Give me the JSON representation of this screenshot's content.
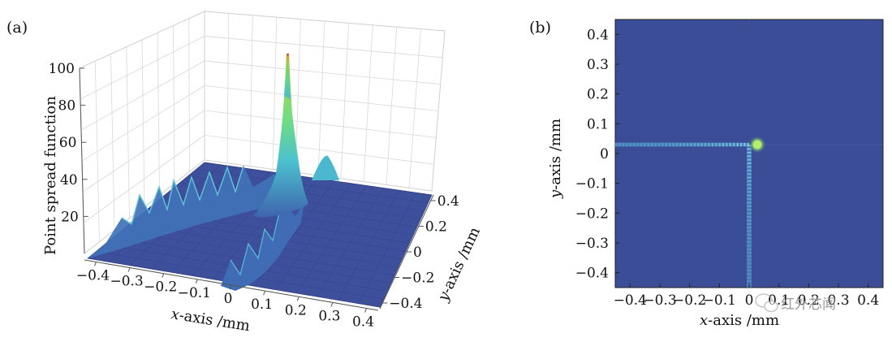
{
  "panels": {
    "a_label": "(a)",
    "b_label": "(b)"
  },
  "watermark": {
    "text": "红外芯闻",
    "icon": "wechat-icon"
  },
  "chart_data": [
    {
      "type": "surface",
      "panel": "(a)",
      "title": "",
      "xlabel_var": "x",
      "xlabel_unit": "-axis /mm",
      "ylabel_var": "y",
      "ylabel_unit": "-axis /mm",
      "zlabel": "Point spread function",
      "x_ticks": [
        "−0.4",
        "−0.3",
        "−0.2",
        "−0.1",
        "0",
        "0.1",
        "0.2",
        "0.3",
        "0.4"
      ],
      "y_ticks": [
        "−0.4",
        "−0.2",
        "0",
        "0.2",
        "0.4"
      ],
      "z_ticks": [
        "20",
        "40",
        "60",
        "80",
        "100"
      ],
      "xlim": [
        -0.45,
        0.45
      ],
      "ylim": [
        -0.45,
        0.45
      ],
      "zlim": [
        0,
        100
      ],
      "grid": true,
      "colormap": [
        "#3c4f9c",
        "#3d7dbd",
        "#4fc7d6",
        "#7fe08a",
        "#d8d34a",
        "#c96a32"
      ],
      "peak": {
        "x": 0,
        "y": 0.03,
        "z": 100
      },
      "features": [
        {
          "name": "horizontal ridge",
          "y": 0.03,
          "x_from": -0.45,
          "x_to": 0,
          "z_max": 20
        },
        {
          "name": "vertical ridge",
          "x": 0,
          "y_from": -0.45,
          "y_to": 0.03,
          "z_max": 40
        },
        {
          "name": "side lobe",
          "x": 0.06,
          "y": 0.03,
          "z": 20
        }
      ]
    },
    {
      "type": "heatmap",
      "panel": "(b)",
      "title": "",
      "xlabel_var": "x",
      "xlabel_unit": "-axis /mm",
      "ylabel_var": "y",
      "ylabel_unit": "-axis /mm",
      "x_ticks": [
        "−0.4",
        "−0.3",
        "−0.2",
        "−0.1",
        "0",
        "0.1",
        "0.2",
        "0.3",
        "0.4"
      ],
      "y_ticks": [
        "0.4",
        "0.3",
        "0.2",
        "0.1",
        "0",
        "−0.1",
        "−0.2",
        "−0.3",
        "−0.4"
      ],
      "xlim": [
        -0.45,
        0.45
      ],
      "ylim": [
        -0.45,
        0.45
      ],
      "grid": false,
      "background_color": "#3b4d96",
      "peak": {
        "x": 0,
        "y": 0.03,
        "color": "#9be36a"
      },
      "streaks": [
        {
          "direction": "horizontal",
          "y": 0.03,
          "x_from": -0.45,
          "x_to": 0,
          "color": "#4fa6d4"
        },
        {
          "direction": "vertical",
          "x": 0,
          "y_from": -0.45,
          "y_to": 0.03,
          "color": "#4fa6d4"
        }
      ]
    }
  ]
}
